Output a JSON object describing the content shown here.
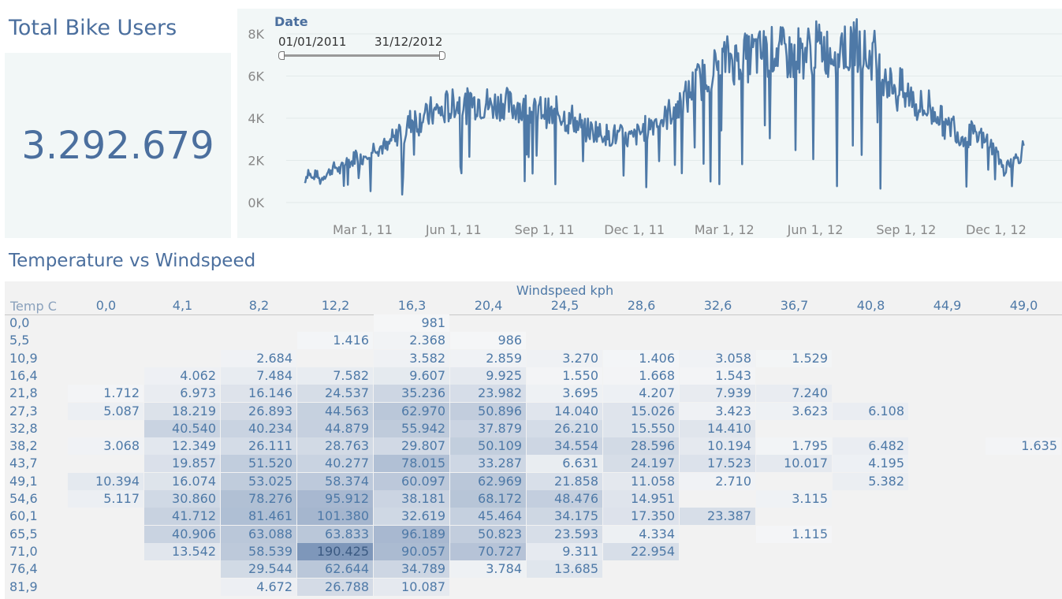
{
  "kpi": {
    "title": "Total Bike Users",
    "value": "3.292.679"
  },
  "date_filter": {
    "title": "Date",
    "start": "01/01/2011",
    "end": "31/12/2012"
  },
  "line_chart": {
    "y_ticks": [
      "8K",
      "6K",
      "4K",
      "2K",
      "0K"
    ],
    "x_ticks": [
      "Mar 1, 11",
      "Jun 1, 11",
      "Sep 1, 11",
      "Dec 1, 11",
      "Mar 1, 12",
      "Jun 1, 12",
      "Sep 1, 12",
      "Dec 1, 12"
    ],
    "line_color": "#4e79a7"
  },
  "chart_data": {
    "type": "line",
    "title": "",
    "xlabel": "",
    "ylabel": "",
    "ylim": [
      0,
      8000
    ],
    "x_range": [
      "2011-01-01",
      "2012-12-31"
    ],
    "series": [
      {
        "values": [
          [
            0,
            985
          ],
          [
            4,
            1500
          ],
          [
            8,
            1100
          ],
          [
            12,
            1400
          ],
          [
            16,
            1000
          ],
          [
            20,
            1300
          ],
          [
            24,
            1400
          ],
          [
            28,
            1600
          ],
          [
            32,
            1700
          ],
          [
            36,
            1500
          ],
          [
            40,
            1800
          ],
          [
            44,
            2000
          ],
          [
            48,
            1900
          ],
          [
            52,
            2300
          ],
          [
            56,
            2000
          ],
          [
            60,
            2200
          ],
          [
            64,
            2500
          ],
          [
            68,
            2400
          ],
          [
            72,
            2800
          ],
          [
            76,
            2600
          ],
          [
            80,
            2700
          ],
          [
            84,
            2500
          ],
          [
            88,
            3000
          ],
          [
            92,
            2900
          ],
          [
            96,
            3500
          ],
          [
            100,
            3000
          ],
          [
            104,
            3600
          ],
          [
            108,
            3900
          ],
          [
            112,
            4000
          ],
          [
            116,
            3800
          ],
          [
            120,
            4200
          ],
          [
            124,
            4000
          ],
          [
            128,
            4300
          ],
          [
            132,
            4200
          ],
          [
            136,
            4500
          ],
          [
            140,
            4100
          ],
          [
            144,
            4600
          ],
          [
            148,
            4400
          ],
          [
            152,
            4800
          ],
          [
            156,
            4700
          ],
          [
            160,
            4800
          ],
          [
            164,
            4500
          ],
          [
            168,
            5000
          ],
          [
            172,
            4700
          ],
          [
            176,
            4900
          ],
          [
            180,
            4600
          ],
          [
            184,
            4800
          ],
          [
            188,
            4500
          ],
          [
            192,
            4700
          ],
          [
            196,
            4600
          ],
          [
            200,
            4800
          ],
          [
            204,
            4700
          ],
          [
            208,
            4600
          ],
          [
            212,
            4500
          ],
          [
            216,
            4700
          ],
          [
            220,
            4300
          ],
          [
            224,
            4500
          ],
          [
            228,
            4400
          ],
          [
            232,
            4300
          ],
          [
            236,
            4100
          ],
          [
            240,
            4500
          ],
          [
            244,
            4300
          ],
          [
            248,
            4200
          ],
          [
            252,
            4000
          ],
          [
            256,
            4400
          ],
          [
            260,
            4200
          ],
          [
            264,
            4000
          ],
          [
            268,
            3800
          ],
          [
            272,
            4100
          ],
          [
            276,
            3600
          ],
          [
            280,
            3700
          ],
          [
            284,
            3400
          ],
          [
            288,
            3500
          ],
          [
            292,
            3300
          ],
          [
            296,
            3500
          ],
          [
            300,
            3200
          ],
          [
            304,
            3400
          ],
          [
            308,
            3000
          ],
          [
            312,
            3300
          ],
          [
            316,
            3100
          ],
          [
            320,
            3200
          ],
          [
            324,
            2900
          ],
          [
            328,
            3100
          ],
          [
            332,
            3000
          ],
          [
            336,
            3200
          ],
          [
            340,
            3300
          ],
          [
            344,
            3500
          ],
          [
            348,
            3600
          ],
          [
            352,
            3800
          ],
          [
            356,
            3900
          ],
          [
            360,
            4000
          ],
          [
            364,
            3900
          ],
          [
            368,
            4200
          ],
          [
            372,
            4400
          ],
          [
            376,
            4600
          ],
          [
            380,
            4500
          ],
          [
            384,
            4900
          ],
          [
            388,
            5000
          ],
          [
            392,
            5400
          ],
          [
            396,
            5600
          ],
          [
            400,
            5800
          ],
          [
            404,
            5900
          ],
          [
            408,
            6200
          ],
          [
            412,
            6400
          ],
          [
            416,
            6300
          ],
          [
            420,
            6600
          ],
          [
            424,
            6700
          ],
          [
            428,
            6800
          ],
          [
            432,
            6900
          ],
          [
            436,
            6700
          ],
          [
            440,
            6900
          ],
          [
            444,
            7000
          ],
          [
            448,
            6800
          ],
          [
            452,
            7000
          ],
          [
            456,
            7100
          ],
          [
            460,
            7000
          ],
          [
            464,
            7200
          ],
          [
            468,
            7000
          ],
          [
            472,
            7100
          ],
          [
            476,
            7300
          ],
          [
            480,
            7200
          ],
          [
            484,
            7100
          ],
          [
            488,
            7000
          ],
          [
            492,
            6900
          ],
          [
            496,
            6800
          ],
          [
            500,
            7200
          ],
          [
            504,
            7000
          ],
          [
            508,
            7300
          ],
          [
            512,
            7100
          ],
          [
            516,
            7400
          ],
          [
            520,
            7300
          ],
          [
            524,
            7500
          ],
          [
            528,
            7200
          ],
          [
            532,
            7100
          ],
          [
            536,
            7400
          ],
          [
            540,
            7000
          ],
          [
            544,
            7600
          ],
          [
            548,
            7300
          ],
          [
            552,
            7000
          ],
          [
            556,
            7700
          ],
          [
            560,
            7500
          ],
          [
            564,
            7300
          ],
          [
            568,
            7000
          ],
          [
            572,
            6800
          ],
          [
            576,
            7200
          ],
          [
            580,
            6500
          ],
          [
            584,
            6000
          ],
          [
            588,
            6300
          ],
          [
            592,
            5500
          ],
          [
            596,
            5800
          ],
          [
            600,
            5000
          ],
          [
            604,
            5600
          ],
          [
            608,
            4800
          ],
          [
            612,
            5200
          ],
          [
            616,
            5000
          ],
          [
            620,
            4500
          ],
          [
            624,
            4600
          ],
          [
            628,
            4300
          ],
          [
            632,
            4700
          ],
          [
            636,
            4100
          ],
          [
            640,
            4400
          ],
          [
            644,
            4000
          ],
          [
            648,
            3600
          ],
          [
            652,
            3500
          ],
          [
            656,
            3800
          ],
          [
            660,
            3400
          ],
          [
            664,
            3000
          ],
          [
            668,
            3300
          ],
          [
            672,
            3100
          ],
          [
            676,
            3400
          ],
          [
            680,
            2900
          ],
          [
            684,
            3200
          ],
          [
            688,
            2800
          ],
          [
            692,
            3000
          ],
          [
            696,
            2600
          ],
          [
            700,
            2400
          ],
          [
            704,
            2000
          ],
          [
            708,
            1400
          ],
          [
            712,
            2000
          ],
          [
            716,
            1800
          ],
          [
            720,
            2100
          ],
          [
            724,
            2200
          ],
          [
            728,
            2700
          ]
        ]
      }
    ]
  },
  "heatmap": {
    "title": "Temperature vs Windspeed",
    "x_axis_title": "Windspeed kph",
    "y_axis_title": "Temp C",
    "columns": [
      "0,0",
      "4,1",
      "8,2",
      "12,2",
      "16,3",
      "20,4",
      "24,5",
      "28,6",
      "32,6",
      "36,7",
      "40,8",
      "44,9",
      "49,0"
    ],
    "rows": [
      "0,0",
      "5,5",
      "10,9",
      "16,4",
      "21,8",
      "27,3",
      "32,8",
      "38,2",
      "43,7",
      "49,1",
      "54,6",
      "60,1",
      "65,5",
      "71,0",
      "76,4",
      "81,9"
    ],
    "cells": [
      [
        "",
        "",
        "",
        "",
        "981",
        "",
        "",
        "",
        "",
        "",
        "",
        "",
        ""
      ],
      [
        "",
        "",
        "",
        "1.416",
        "2.368",
        "986",
        "",
        "",
        "",
        "",
        "",
        "",
        ""
      ],
      [
        "",
        "",
        "2.684",
        "",
        "3.582",
        "2.859",
        "3.270",
        "1.406",
        "3.058",
        "1.529",
        "",
        "",
        ""
      ],
      [
        "",
        "4.062",
        "7.484",
        "7.582",
        "9.607",
        "9.925",
        "1.550",
        "1.668",
        "1.543",
        "",
        "",
        "",
        ""
      ],
      [
        "1.712",
        "6.973",
        "16.146",
        "24.537",
        "35.236",
        "23.982",
        "3.695",
        "4.207",
        "7.939",
        "7.240",
        "",
        "",
        ""
      ],
      [
        "5.087",
        "18.219",
        "26.893",
        "44.563",
        "62.970",
        "50.896",
        "14.040",
        "15.026",
        "3.423",
        "3.623",
        "6.108",
        "",
        ""
      ],
      [
        "",
        "40.540",
        "40.234",
        "44.879",
        "55.942",
        "37.879",
        "26.210",
        "15.550",
        "14.410",
        "",
        "",
        "",
        ""
      ],
      [
        "3.068",
        "12.349",
        "26.111",
        "28.763",
        "29.807",
        "50.109",
        "34.554",
        "28.596",
        "10.194",
        "1.795",
        "6.482",
        "",
        "1.635"
      ],
      [
        "",
        "19.857",
        "51.520",
        "40.277",
        "78.015",
        "33.287",
        "6.631",
        "24.197",
        "17.523",
        "10.017",
        "4.195",
        "",
        ""
      ],
      [
        "10.394",
        "16.074",
        "53.025",
        "58.374",
        "60.097",
        "62.969",
        "21.858",
        "11.058",
        "2.710",
        "",
        "5.382",
        "",
        ""
      ],
      [
        "5.117",
        "30.860",
        "78.276",
        "95.912",
        "38.181",
        "68.172",
        "48.476",
        "14.951",
        "",
        "3.115",
        "",
        "",
        ""
      ],
      [
        "",
        "41.712",
        "81.461",
        "101.380",
        "32.619",
        "45.464",
        "34.175",
        "17.350",
        "23.387",
        "",
        "",
        "",
        ""
      ],
      [
        "",
        "40.906",
        "63.088",
        "63.833",
        "96.189",
        "50.823",
        "23.593",
        "4.334",
        "",
        "1.115",
        "",
        "",
        ""
      ],
      [
        "",
        "13.542",
        "58.539",
        "190.425",
        "90.057",
        "70.727",
        "9.311",
        "22.954",
        "",
        "",
        "",
        "",
        ""
      ],
      [
        "",
        "",
        "29.544",
        "62.644",
        "34.789",
        "3.784",
        "13.685",
        "",
        "",
        "",
        "",
        "",
        ""
      ],
      [
        "",
        "",
        "4.672",
        "26.788",
        "10.087",
        "",
        "",
        "",
        "",
        "",
        "",
        "",
        ""
      ]
    ]
  }
}
